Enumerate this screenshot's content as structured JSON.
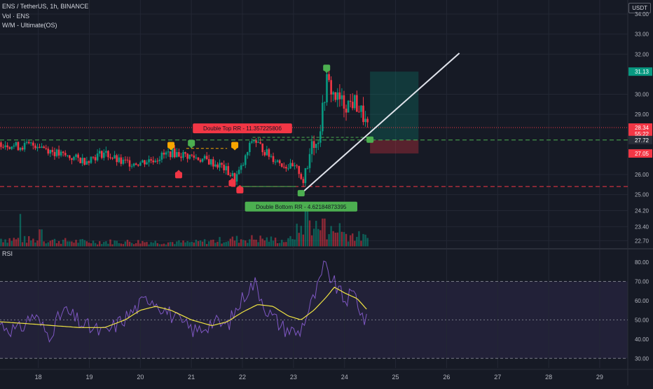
{
  "header": {
    "symbol_line": "ENS / TetherUS, 1h, BINANCE",
    "volume_line": "Vol · ENS",
    "indicator_line": "W/M - Ultimate(OS)",
    "currency_badge": "USDT"
  },
  "chart_data": [
    {
      "type": "candlestick",
      "pane": "price",
      "y_ticks": [
        34.0,
        33.0,
        32.0,
        30.0,
        29.0,
        26.0,
        25.0,
        24.2,
        23.4,
        22.7
      ],
      "y_tick_labels": [
        "34.00",
        "33.00",
        "32.00",
        "30.00",
        "29.00",
        "26.00",
        "25.00",
        "24.20",
        "23.40",
        "22.70"
      ],
      "ylim": [
        22.4,
        34.7
      ],
      "x_ticks": [
        18,
        19,
        20,
        21,
        22,
        23,
        24,
        25,
        26,
        27,
        28,
        29
      ],
      "x_tick_labels": [
        "18",
        "19",
        "20",
        "21",
        "22",
        "23",
        "24",
        "25",
        "26",
        "27",
        "28",
        "29"
      ],
      "xlim": [
        17.25,
        29.55
      ],
      "keypoints": [
        [
          17.25,
          27.6
        ],
        [
          17.6,
          27.4
        ],
        [
          18.0,
          27.5
        ],
        [
          18.4,
          27.0
        ],
        [
          18.9,
          26.7
        ],
        [
          19.3,
          27.1
        ],
        [
          19.6,
          26.6
        ],
        [
          20.0,
          26.6
        ],
        [
          20.3,
          26.8
        ],
        [
          20.6,
          27.1
        ],
        [
          21.0,
          26.9
        ],
        [
          21.3,
          26.7
        ],
        [
          21.6,
          26.4
        ],
        [
          21.85,
          25.8
        ],
        [
          22.0,
          26.4
        ],
        [
          22.2,
          27.8
        ],
        [
          22.5,
          27.0
        ],
        [
          22.8,
          26.5
        ],
        [
          23.1,
          26.2
        ],
        [
          23.2,
          25.6
        ],
        [
          23.3,
          26.5
        ],
        [
          23.35,
          28.0
        ],
        [
          23.45,
          27.4
        ],
        [
          23.55,
          28.8
        ],
        [
          23.65,
          30.7
        ],
        [
          23.8,
          29.9
        ],
        [
          24.0,
          29.5
        ],
        [
          24.2,
          29.6
        ],
        [
          24.35,
          29.0
        ],
        [
          24.45,
          28.3
        ]
      ],
      "trendline": [
        [
          23.15,
          25.05
        ],
        [
          26.25,
          32.05
        ]
      ],
      "double_top_line": [
        [
          20.9,
          27.3
        ],
        [
          21.7,
          27.3
        ],
        [
          22.2,
          27.85
        ],
        [
          24.45,
          27.85
        ]
      ],
      "support_line": [
        [
          21.9,
          25.4
        ],
        [
          23.05,
          25.4
        ]
      ],
      "horizontal_levels": [
        {
          "value": 28.34,
          "color": "#f23645",
          "style": "dotted"
        },
        {
          "value": 27.72,
          "color": "#4caf50",
          "style": "dashed"
        },
        {
          "value": 25.4,
          "color": "#f23645",
          "style": "dashed"
        }
      ],
      "position_box": {
        "x0": 24.5,
        "x1": 25.45,
        "entry": 27.72,
        "target": 31.13,
        "stop": 27.05
      },
      "price_labels": [
        {
          "text": "31.13",
          "value": 31.13,
          "color": "#089981"
        },
        {
          "text": "28.34",
          "value": 28.34,
          "color": "#f23645"
        },
        {
          "text": "55:22",
          "value": 28.02,
          "color": "#f23645"
        },
        {
          "text": "27.72",
          "value": 27.72,
          "color": "#2a2e39"
        },
        {
          "text": "27.05",
          "value": 27.05,
          "color": "#f23645"
        }
      ],
      "annotations": [
        {
          "text": "Double Top RR - 11.35722580б",
          "x": 22.0,
          "y": 28.3,
          "color": "#f23645"
        },
        {
          "text": "Double Bottom RR - 4.62184873395",
          "x": 23.15,
          "y": 24.4,
          "color": "#4caf50"
        }
      ],
      "markers": [
        {
          "x": 20.6,
          "y": 27.45,
          "color": "#f7a600",
          "dir": "down"
        },
        {
          "x": 21.0,
          "y": 27.55,
          "color": "#4caf50",
          "dir": "down"
        },
        {
          "x": 21.85,
          "y": 27.45,
          "color": "#f7a600",
          "dir": "down"
        },
        {
          "x": 22.2,
          "y": 28.3,
          "color": "#4caf50",
          "dir": "down"
        },
        {
          "x": 23.65,
          "y": 31.3,
          "color": "#4caf50",
          "dir": "down"
        },
        {
          "x": 20.75,
          "y": 25.95,
          "color": "#f23645",
          "dir": "up"
        },
        {
          "x": 21.8,
          "y": 25.55,
          "color": "#f23645",
          "dir": "up"
        },
        {
          "x": 21.95,
          "y": 25.2,
          "color": "#f23645",
          "dir": "up"
        },
        {
          "x": 23.15,
          "y": 25.05,
          "color": "#4caf50",
          "dir": "none"
        },
        {
          "x": 24.5,
          "y": 27.72,
          "color": "#4caf50",
          "dir": "none"
        }
      ]
    },
    {
      "type": "volume",
      "pane": "volume",
      "xlim": [
        17.25,
        29.55
      ],
      "baseline_price": 22.42,
      "volume_keypoints": [
        [
          17.25,
          0.5
        ],
        [
          18.0,
          0.4
        ],
        [
          19.0,
          0.3
        ],
        [
          20.0,
          0.3
        ],
        [
          21.0,
          0.25
        ],
        [
          21.8,
          0.45
        ],
        [
          22.3,
          0.5
        ],
        [
          22.9,
          0.35
        ],
        [
          23.25,
          1.6
        ],
        [
          23.6,
          1.0
        ],
        [
          23.9,
          0.9
        ],
        [
          24.2,
          0.7
        ],
        [
          24.45,
          0.5
        ]
      ],
      "spikes": [
        [
          17.65,
          2.1
        ],
        [
          18.05,
          1.1
        ],
        [
          23.25,
          2.3
        ],
        [
          23.6,
          1.8
        ],
        [
          23.9,
          1.5
        ]
      ]
    },
    {
      "type": "line",
      "pane": "rsi",
      "title": "RSI",
      "y_ticks": [
        80.0,
        70.0,
        60.0,
        50.0,
        40.0,
        30.0
      ],
      "y_tick_labels": [
        "80.00",
        "70.00",
        "60.00",
        "50.00",
        "40.00",
        "30.00"
      ],
      "ylim": [
        25,
        84
      ],
      "band": [
        30,
        70
      ],
      "midline": 50,
      "rsi_keypoints": [
        [
          17.25,
          48
        ],
        [
          17.6,
          44
        ],
        [
          17.9,
          53
        ],
        [
          18.2,
          42
        ],
        [
          18.5,
          55
        ],
        [
          18.9,
          47
        ],
        [
          19.3,
          43
        ],
        [
          19.7,
          51
        ],
        [
          20.0,
          58
        ],
        [
          20.2,
          62
        ],
        [
          20.5,
          55
        ],
        [
          20.8,
          48
        ],
        [
          21.1,
          44
        ],
        [
          21.4,
          49
        ],
        [
          21.7,
          47
        ],
        [
          21.9,
          56
        ],
        [
          22.1,
          66
        ],
        [
          22.25,
          69
        ],
        [
          22.5,
          54
        ],
        [
          22.8,
          46
        ],
        [
          23.1,
          43
        ],
        [
          23.3,
          55
        ],
        [
          23.5,
          68
        ],
        [
          23.6,
          78
        ],
        [
          23.75,
          71
        ],
        [
          24.0,
          60
        ],
        [
          24.2,
          64
        ],
        [
          24.35,
          52
        ],
        [
          24.45,
          48
        ]
      ],
      "ma_keypoints": [
        [
          17.25,
          49
        ],
        [
          17.8,
          48
        ],
        [
          18.3,
          47
        ],
        [
          18.8,
          46
        ],
        [
          19.3,
          46
        ],
        [
          19.7,
          50
        ],
        [
          20.0,
          55
        ],
        [
          20.3,
          57
        ],
        [
          20.6,
          55
        ],
        [
          21.0,
          50
        ],
        [
          21.4,
          47
        ],
        [
          21.7,
          49
        ],
        [
          22.0,
          54
        ],
        [
          22.3,
          58
        ],
        [
          22.6,
          57
        ],
        [
          22.9,
          52
        ],
        [
          23.15,
          50
        ],
        [
          23.4,
          55
        ],
        [
          23.65,
          62
        ],
        [
          23.8,
          67
        ],
        [
          24.0,
          64
        ],
        [
          24.25,
          61
        ],
        [
          24.45,
          55
        ]
      ]
    }
  ]
}
